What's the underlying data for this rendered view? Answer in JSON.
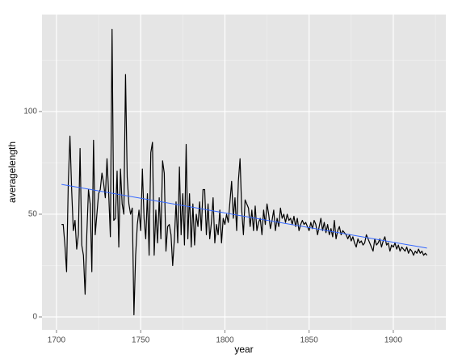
{
  "chart_data": {
    "type": "line",
    "x_label": "year",
    "y_label": "averagelength",
    "x": [
      1703,
      1704,
      1705,
      1706,
      1707,
      1708,
      1709,
      1710,
      1711,
      1712,
      1713,
      1714,
      1715,
      1716,
      1717,
      1718,
      1719,
      1720,
      1721,
      1722,
      1723,
      1724,
      1725,
      1726,
      1727,
      1728,
      1729,
      1730,
      1731,
      1732,
      1733,
      1734,
      1735,
      1736,
      1737,
      1738,
      1739,
      1740,
      1741,
      1742,
      1743,
      1744,
      1745,
      1746,
      1747,
      1748,
      1749,
      1750,
      1751,
      1752,
      1753,
      1754,
      1755,
      1756,
      1757,
      1758,
      1759,
      1760,
      1761,
      1762,
      1763,
      1764,
      1765,
      1766,
      1767,
      1768,
      1769,
      1770,
      1771,
      1772,
      1773,
      1774,
      1775,
      1776,
      1777,
      1778,
      1779,
      1780,
      1781,
      1782,
      1783,
      1784,
      1785,
      1786,
      1787,
      1788,
      1789,
      1790,
      1791,
      1792,
      1793,
      1794,
      1795,
      1796,
      1797,
      1798,
      1799,
      1800,
      1801,
      1802,
      1803,
      1804,
      1805,
      1806,
      1807,
      1808,
      1809,
      1810,
      1811,
      1812,
      1813,
      1814,
      1815,
      1816,
      1817,
      1818,
      1819,
      1820,
      1821,
      1822,
      1823,
      1824,
      1825,
      1826,
      1827,
      1828,
      1829,
      1830,
      1831,
      1832,
      1833,
      1834,
      1835,
      1836,
      1837,
      1838,
      1839,
      1840,
      1841,
      1842,
      1843,
      1844,
      1845,
      1846,
      1847,
      1848,
      1849,
      1850,
      1851,
      1852,
      1853,
      1854,
      1855,
      1856,
      1857,
      1858,
      1859,
      1860,
      1861,
      1862,
      1863,
      1864,
      1865,
      1866,
      1867,
      1868,
      1869,
      1870,
      1871,
      1872,
      1873,
      1874,
      1875,
      1876,
      1877,
      1878,
      1879,
      1880,
      1881,
      1882,
      1883,
      1884,
      1885,
      1886,
      1887,
      1888,
      1889,
      1890,
      1891,
      1892,
      1893,
      1894,
      1895,
      1896,
      1897,
      1898,
      1899,
      1900,
      1901,
      1902,
      1903,
      1904,
      1905,
      1906,
      1907,
      1908,
      1909,
      1910,
      1911,
      1912,
      1913,
      1914,
      1915,
      1916,
      1917,
      1918,
      1919,
      1920
    ],
    "series": [
      {
        "color": "#000000",
        "values": [
          45,
          45,
          35,
          22,
          65,
          88,
          62,
          42,
          47,
          33,
          40,
          82,
          35,
          30,
          11,
          40,
          62,
          55,
          22,
          86,
          40,
          50,
          60,
          62,
          70,
          65,
          58,
          77,
          60,
          39,
          140,
          47,
          48,
          71,
          34,
          72,
          55,
          50,
          118,
          68,
          55,
          50,
          53,
          1,
          30,
          45,
          52,
          42,
          72,
          48,
          38,
          60,
          30,
          80,
          85,
          30,
          52,
          36,
          58,
          38,
          76,
          70,
          32,
          44,
          45,
          40,
          25,
          38,
          56,
          36,
          73,
          40,
          60,
          35,
          84,
          38,
          60,
          34,
          55,
          35,
          50,
          44,
          56,
          42,
          62,
          62,
          40,
          55,
          38,
          46,
          58,
          36,
          45,
          40,
          52,
          36,
          48,
          45,
          50,
          46,
          56,
          66,
          48,
          58,
          42,
          66,
          77,
          52,
          40,
          57,
          55,
          53,
          44,
          52,
          42,
          54,
          42,
          46,
          48,
          40,
          52,
          45,
          55,
          50,
          43,
          47,
          52,
          42,
          48,
          44,
          53,
          48,
          50,
          46,
          50,
          47,
          48,
          45,
          49,
          44,
          48,
          42,
          45,
          47,
          45,
          46,
          44,
          42,
          46,
          43,
          47,
          45,
          40,
          44,
          48,
          42,
          46,
          41,
          45,
          40,
          43,
          39,
          47,
          38,
          42,
          44,
          40,
          42,
          41,
          40,
          38,
          40,
          37,
          39,
          36,
          34,
          38,
          36,
          37,
          35,
          36,
          40,
          38,
          36,
          34,
          32,
          38,
          35,
          36,
          38,
          34,
          37,
          39,
          35,
          36,
          32,
          35,
          34,
          36,
          33,
          35,
          32,
          34,
          33,
          32,
          34,
          31,
          33,
          32,
          30,
          32,
          31,
          33,
          31,
          32,
          30,
          31,
          30
        ]
      }
    ],
    "trend": {
      "color": "#3366FF",
      "x": [
        1703,
        1920
      ],
      "values": [
        64.5,
        33.5
      ]
    },
    "xlim": [
      1691.4,
      1931.2
    ],
    "xticks": [
      1700,
      1750,
      1800,
      1850,
      1900
    ],
    "ylim": [
      -6.3,
      147.2
    ],
    "yticks": [
      0,
      50,
      100
    ],
    "grid": true
  }
}
